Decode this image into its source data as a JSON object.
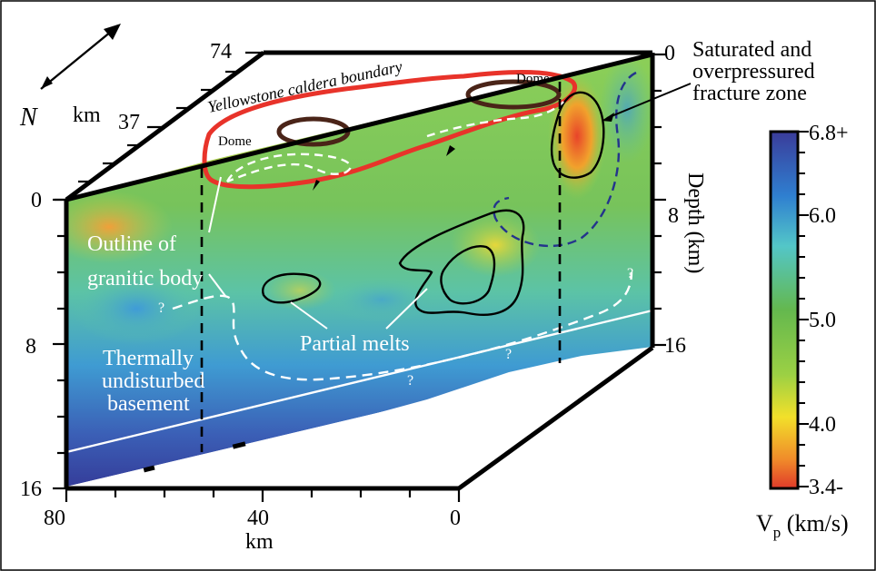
{
  "figure": {
    "labels": {
      "north": "N",
      "top_axis_unit": "km",
      "top_tick_74": "74",
      "top_tick_37": "37",
      "top_tick_0": "0",
      "left_tick_0": "0",
      "left_tick_8": "8",
      "left_tick_16": "16",
      "right_tick_0": "0",
      "right_tick_8": "8",
      "right_tick_16": "16",
      "depth_label": "Depth (km)",
      "bottom_tick_80": "80",
      "bottom_tick_40": "40",
      "bottom_tick_0": "0",
      "bottom_unit": "km"
    },
    "annotations": {
      "caldera_boundary": "Yellowstone caldera boundary",
      "dome_left": "Dome",
      "dome_right": "Dome",
      "fracture_zone_line1": "Saturated and",
      "fracture_zone_line2": "overpressured",
      "fracture_zone_line3": "fracture zone",
      "granitic_line1": "Outline of",
      "granitic_line2": "granitic body",
      "partial_melts": "Partial melts",
      "basement_line1": "Thermally",
      "basement_line2": "undisturbed",
      "basement_line3": "basement",
      "question_mark": "?"
    },
    "colorbar": {
      "ticks": [
        "6.8+",
        "6.0",
        "5.0",
        "4.0",
        "3.4-"
      ],
      "label_v": "V",
      "label_sub": "p",
      "label_unit": " (km/s)",
      "colors": [
        "#3a3c9a",
        "#2f7fd0",
        "#53c6c8",
        "#64b84e",
        "#9bd044",
        "#f2e02a",
        "#f08a2a",
        "#e03a2a"
      ]
    }
  }
}
